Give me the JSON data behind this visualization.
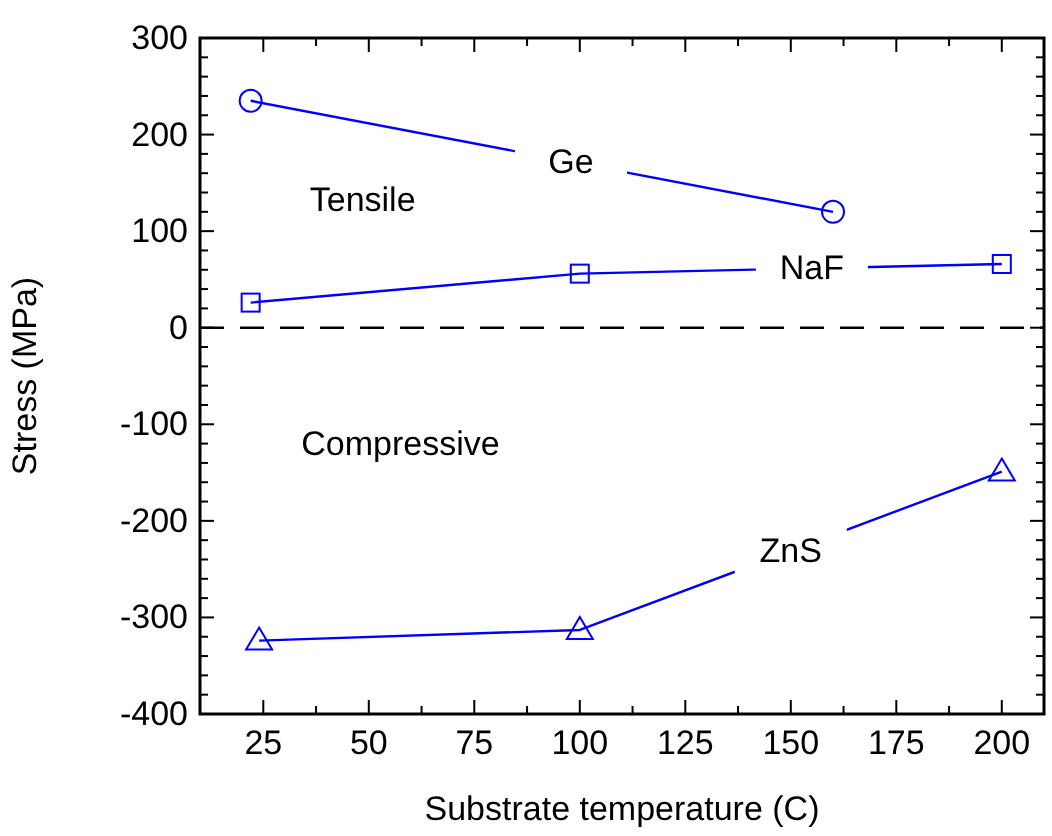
{
  "chart_data": {
    "type": "line",
    "xlabel": "Substrate temperature (C)",
    "ylabel": "Stress (MPa)",
    "xlim": [
      10,
      210
    ],
    "xticks": [
      25,
      50,
      75,
      100,
      125,
      150,
      175,
      200
    ],
    "ylim": [
      -400,
      300
    ],
    "yticks": [
      -400,
      -300,
      -200,
      -100,
      0,
      100,
      200,
      300
    ],
    "series": [
      {
        "name": "Ge",
        "color": "#0000ff",
        "marker": "circle",
        "x": [
          22,
          160
        ],
        "values": [
          235,
          120
        ]
      },
      {
        "name": "NaF",
        "color": "#0000ff",
        "marker": "square",
        "x": [
          22,
          100,
          200
        ],
        "values": [
          26,
          56,
          66
        ]
      },
      {
        "name": "ZnS",
        "color": "#0000ff",
        "marker": "triangle",
        "x": [
          24,
          100,
          200
        ],
        "values": [
          -324,
          -313,
          -149
        ]
      }
    ],
    "ref_lines": [
      {
        "axis": "y",
        "value": 0,
        "color": "#000000",
        "line_style": "dashed"
      }
    ],
    "annotations": [
      "Tensile",
      "Compressive"
    ],
    "grid": false
  }
}
